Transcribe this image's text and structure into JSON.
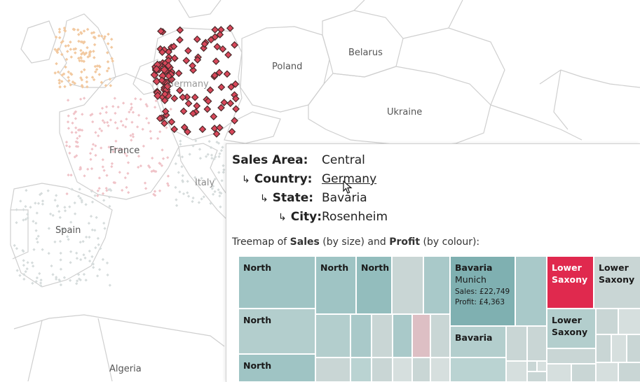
{
  "map": {
    "countries": [
      "Poland",
      "Belarus",
      "Ukraine",
      "Germany",
      "France",
      "Italy",
      "Spain",
      "Algeria"
    ],
    "colors": {
      "germany_points": "#d9475a",
      "highlight_stroke": "#4a2a2a",
      "uk_points": "#f2c9a0",
      "france_points": "#f0c3c8",
      "faded_points": "#d6dcdc",
      "borders": "#cfcfcf"
    }
  },
  "tooltip": {
    "hierarchy": [
      {
        "label": "Sales Area:",
        "value": "Central"
      },
      {
        "label": "Country:",
        "value": "Germany"
      },
      {
        "label": "State:",
        "value": "Bavaria"
      },
      {
        "label": "City:",
        "value": "Rosenheim"
      }
    ],
    "caption": {
      "part1": "Treemap of ",
      "sales": "Sales",
      "part2": " (by size) and ",
      "profit": "Profit",
      "part3": " (by colour):"
    },
    "treemap": {
      "tiles": [
        {
          "label": "North"
        },
        {
          "label": "North"
        },
        {
          "label": "North"
        },
        {
          "label": "North"
        },
        {
          "label": "North"
        },
        {
          "label": "Bavaria",
          "sub": "Munich",
          "sales": "Sales: £22,749",
          "profit": "Profit: £4,363"
        },
        {
          "label": "Bavaria"
        },
        {
          "label": "Lower Saxony"
        },
        {
          "label": "Lower Saxony"
        },
        {
          "label": "Lower Saxony"
        }
      ],
      "colors": {
        "teal_dark": "#7fb0b1",
        "teal": "#9fc4c4",
        "teal_light": "#bad3d2",
        "grey": "#c9d6d5",
        "pale": "#d6dfde",
        "red": "#e0294e",
        "pink": "#ddbfc4"
      }
    }
  }
}
